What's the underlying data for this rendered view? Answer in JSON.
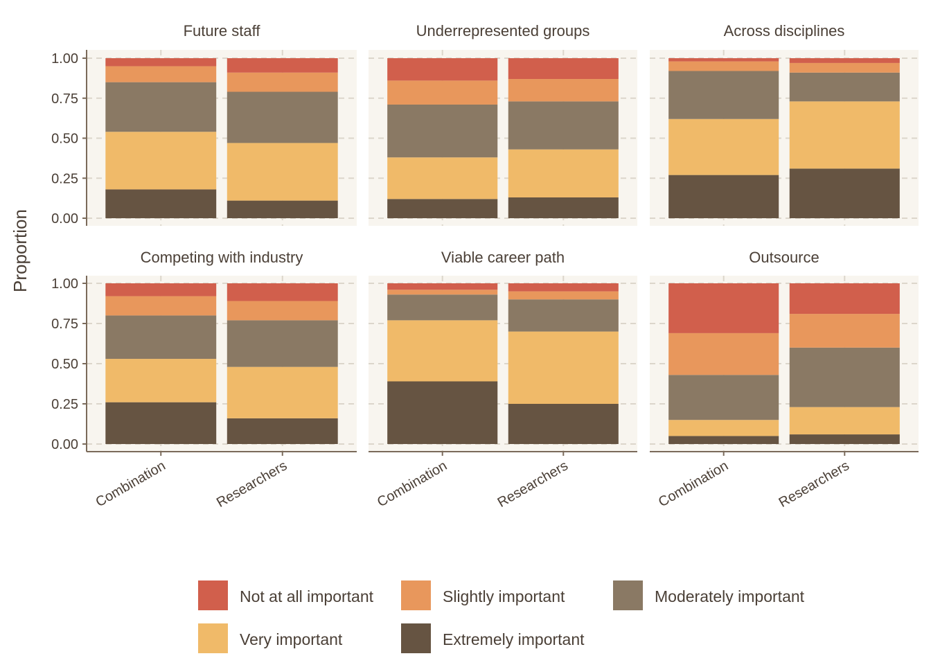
{
  "chart_data": {
    "type": "bar",
    "stacked": true,
    "ylabel": "Proportion",
    "ylim": [
      0,
      1
    ],
    "yticks": [
      "0.00",
      "0.25",
      "0.50",
      "0.75",
      "1.00"
    ],
    "categories": [
      "Combination",
      "Researchers"
    ],
    "levels": [
      "Not at all important",
      "Slightly important",
      "Moderately important",
      "Very important",
      "Extremely important"
    ],
    "colors": {
      "Not at all important": "#d15f4c",
      "Slightly important": "#e8975c",
      "Moderately important": "#8a7964",
      "Very important": "#f0ba69",
      "Extremely important": "#665442"
    },
    "legend_position": "bottom",
    "panel_background": "#f8f5ef",
    "facets": [
      {
        "title": "Future staff",
        "bars": [
          {
            "category": "Combination",
            "values": {
              "Extremely important": 0.18,
              "Very important": 0.36,
              "Moderately important": 0.31,
              "Slightly important": 0.1,
              "Not at all important": 0.05
            }
          },
          {
            "category": "Researchers",
            "values": {
              "Extremely important": 0.11,
              "Very important": 0.36,
              "Moderately important": 0.32,
              "Slightly important": 0.12,
              "Not at all important": 0.09
            }
          }
        ]
      },
      {
        "title": "Underrepresented groups",
        "bars": [
          {
            "category": "Combination",
            "values": {
              "Extremely important": 0.12,
              "Very important": 0.26,
              "Moderately important": 0.33,
              "Slightly important": 0.15,
              "Not at all important": 0.14
            }
          },
          {
            "category": "Researchers",
            "values": {
              "Extremely important": 0.13,
              "Very important": 0.3,
              "Moderately important": 0.3,
              "Slightly important": 0.14,
              "Not at all important": 0.13
            }
          }
        ]
      },
      {
        "title": "Across disciplines",
        "bars": [
          {
            "category": "Combination",
            "values": {
              "Extremely important": 0.27,
              "Very important": 0.35,
              "Moderately important": 0.3,
              "Slightly important": 0.06,
              "Not at all important": 0.02
            }
          },
          {
            "category": "Researchers",
            "values": {
              "Extremely important": 0.31,
              "Very important": 0.42,
              "Moderately important": 0.18,
              "Slightly important": 0.06,
              "Not at all important": 0.03
            }
          }
        ]
      },
      {
        "title": "Competing with industry",
        "bars": [
          {
            "category": "Combination",
            "values": {
              "Extremely important": 0.26,
              "Very important": 0.27,
              "Moderately important": 0.27,
              "Slightly important": 0.12,
              "Not at all important": 0.08
            }
          },
          {
            "category": "Researchers",
            "values": {
              "Extremely important": 0.16,
              "Very important": 0.32,
              "Moderately important": 0.29,
              "Slightly important": 0.12,
              "Not at all important": 0.11
            }
          }
        ]
      },
      {
        "title": "Viable career path",
        "bars": [
          {
            "category": "Combination",
            "values": {
              "Extremely important": 0.39,
              "Very important": 0.38,
              "Moderately important": 0.16,
              "Slightly important": 0.03,
              "Not at all important": 0.04
            }
          },
          {
            "category": "Researchers",
            "values": {
              "Extremely important": 0.25,
              "Very important": 0.45,
              "Moderately important": 0.2,
              "Slightly important": 0.05,
              "Not at all important": 0.05
            }
          }
        ]
      },
      {
        "title": "Outsource",
        "bars": [
          {
            "category": "Combination",
            "values": {
              "Extremely important": 0.05,
              "Very important": 0.1,
              "Moderately important": 0.28,
              "Slightly important": 0.26,
              "Not at all important": 0.31
            }
          },
          {
            "category": "Researchers",
            "values": {
              "Extremely important": 0.06,
              "Very important": 0.17,
              "Moderately important": 0.37,
              "Slightly important": 0.21,
              "Not at all important": 0.19
            }
          }
        ]
      }
    ]
  }
}
